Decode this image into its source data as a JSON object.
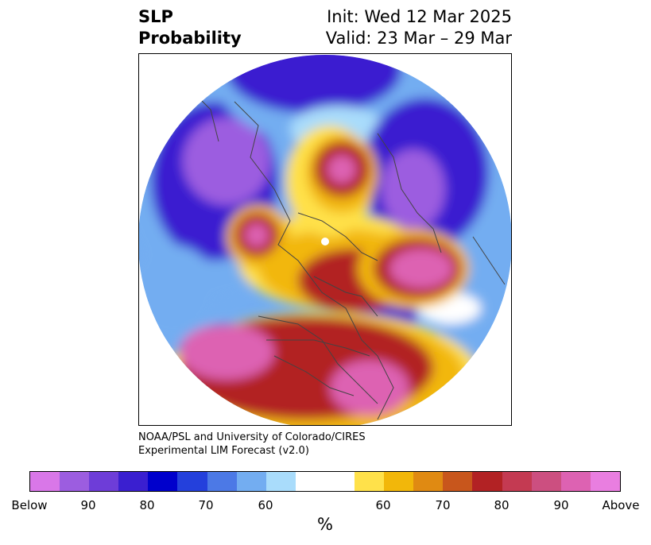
{
  "header": {
    "title_line1": "SLP",
    "title_line2": "Probability",
    "init_text": "Init: Wed 12 Mar 2025",
    "valid_text": "Valid: 23 Mar – 29 Mar"
  },
  "credit": {
    "line1": "NOAA/PSL and University of Colorado/CIRES",
    "line2": "Experimental LIM Forecast (v2.0)"
  },
  "colorbar": {
    "unit": "%",
    "colors": [
      "#d977e8",
      "#9c5de0",
      "#6e3dd8",
      "#3a1fd0",
      "#0000cc",
      "#2440dc",
      "#4c79e6",
      "#73adf1",
      "#a9dcfb",
      "#ffffff",
      "#ffe14a",
      "#f2b70a",
      "#e08a12",
      "#c8561c",
      "#b22224",
      "#c43a52",
      "#cc4f80",
      "#dd62b2",
      "#e97ee0"
    ],
    "tick_labels": [
      "Below",
      "90",
      "80",
      "70",
      "60",
      "60",
      "70",
      "80",
      "90",
      "Above"
    ]
  },
  "map": {
    "colors": {
      "below_strong": "#9c5de0",
      "below_mid": "#3a1fd0",
      "below_weak": "#73adf1",
      "below_light": "#a9dcfb",
      "neutral": "#ffffff",
      "above_light": "#ffe14a",
      "above_weak": "#f2b70a",
      "above_mid": "#b22224",
      "above_strong": "#dd62b2",
      "coast": "#444444"
    }
  }
}
